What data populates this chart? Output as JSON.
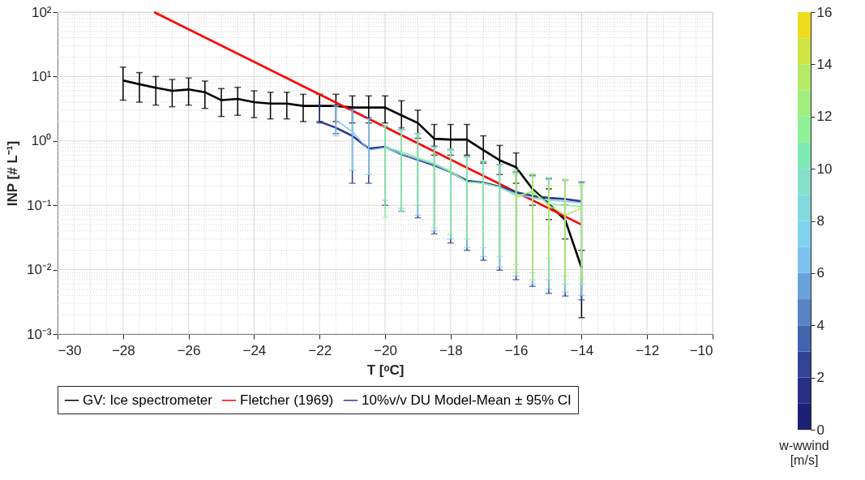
{
  "chart_data": {
    "type": "line",
    "xlabel": "T [ᵒC]",
    "ylabel": "INP [# L⁻¹]",
    "clabel": "w-wwind [m/s]",
    "clim": [
      0,
      16
    ],
    "cticks": [
      0,
      2,
      4,
      6,
      8,
      10,
      12,
      14,
      16
    ],
    "xlim": [
      -30,
      -10
    ],
    "xticks": [
      -30,
      -28,
      -26,
      -24,
      -22,
      -20,
      -18,
      -16,
      -14,
      -12,
      -10
    ],
    "ylim": [
      0.001,
      100
    ],
    "yticks": [
      {
        "value": 0.001,
        "label": "10⁻³"
      },
      {
        "value": 0.01,
        "label": "10⁻²"
      },
      {
        "value": 0.1,
        "label": "10⁻¹"
      },
      {
        "value": 1,
        "label": "10⁰"
      },
      {
        "value": 10,
        "label": "10¹"
      },
      {
        "value": 100,
        "label": "10²"
      }
    ],
    "log": "y",
    "grid": true,
    "legend": "bottom",
    "series": [
      {
        "name": "GV: Ice spectrometer",
        "color": "#000000",
        "x": [
          -28,
          -27.5,
          -27,
          -26.5,
          -26,
          -25.5,
          -25,
          -24.5,
          -24,
          -23.5,
          -23,
          -22.5,
          -22,
          -21.5,
          -21,
          -20.5,
          -20,
          -19.5,
          -19,
          -18.5,
          -18,
          -17.5,
          -17,
          -16.5,
          -16,
          -15.5,
          -15,
          -14.5,
          -14
        ],
        "values": [
          8.7,
          7.6,
          6.7,
          6.0,
          6.3,
          5.7,
          4.3,
          4.5,
          4.0,
          3.8,
          3.8,
          3.5,
          3.5,
          3.5,
          3.3,
          3.3,
          3.3,
          2.5,
          1.9,
          1.08,
          1.05,
          1.05,
          0.72,
          0.5,
          0.39,
          0.18,
          0.105,
          0.059,
          0.0107
        ],
        "errors": [
          [
            4.3,
            14
          ],
          [
            4.0,
            11.5
          ],
          [
            3.6,
            10
          ],
          [
            3.4,
            9.0
          ],
          [
            3.6,
            9.5
          ],
          [
            3.2,
            8.5
          ],
          [
            2.4,
            6.5
          ],
          [
            2.5,
            6.8
          ],
          [
            2.3,
            6.0
          ],
          [
            2.2,
            5.7
          ],
          [
            2.2,
            5.7
          ],
          [
            2.0,
            5.3
          ],
          [
            2.0,
            5.3
          ],
          [
            2.0,
            5.3
          ],
          [
            1.9,
            5.0
          ],
          [
            1.9,
            5.0
          ],
          [
            1.9,
            5.0
          ],
          [
            1.5,
            4.2
          ],
          [
            1.1,
            3.0
          ],
          [
            0.6,
            1.8
          ],
          [
            0.6,
            1.8
          ],
          [
            0.6,
            1.8
          ],
          [
            0.45,
            1.2
          ],
          [
            0.3,
            0.85
          ],
          [
            0.22,
            0.65
          ],
          [
            0.1,
            0.3
          ],
          [
            0.06,
            0.18
          ],
          [
            0.03,
            0.1
          ],
          [
            0.0018,
            0.02
          ]
        ]
      },
      {
        "name": "Fletcher (1969)",
        "color": "#ff0000",
        "x": [
          -27.05,
          -14
        ],
        "values": [
          100,
          0.05
        ]
      },
      {
        "name": "10%v/v DU Model-Mean ± 95% CI",
        "color": "#2e3c8c",
        "x": [
          -22,
          -21.5,
          -21,
          -20.5,
          -20,
          -19.5,
          -19,
          -18.5,
          -18,
          -17.5,
          -17,
          -16.5,
          -16,
          -15.5,
          -15,
          -14.5,
          -14
        ],
        "values": [
          2.0,
          1.6,
          1.2,
          0.76,
          0.81,
          0.62,
          0.51,
          0.42,
          0.33,
          0.24,
          0.225,
          0.195,
          0.16,
          0.14,
          0.13,
          0.125,
          0.115
        ],
        "errors": [
          [
            1.9,
            3.6
          ],
          [
            1.3,
            3.5
          ],
          [
            0.22,
            3.2
          ],
          [
            0.22,
            2.3
          ],
          [
            0.1,
            1.7
          ],
          [
            0.081,
            1.6
          ],
          [
            0.064,
            1.3
          ],
          [
            0.036,
            0.83
          ],
          [
            0.026,
            0.74
          ],
          [
            0.02,
            0.57
          ],
          [
            0.014,
            0.47
          ],
          [
            0.0098,
            0.43
          ],
          [
            0.007,
            0.33
          ],
          [
            0.0055,
            0.29
          ],
          [
            0.0043,
            0.26
          ],
          [
            0.0039,
            0.25
          ],
          [
            0.0034,
            0.23
          ]
        ]
      },
      {
        "color": "#7fc6f0",
        "x": [
          -21.5,
          -21,
          -20.5,
          -20,
          -19.5,
          -19,
          -18.5,
          -18,
          -17.5,
          -17,
          -16.5,
          -16,
          -15.5,
          -15,
          -14.5,
          -14
        ],
        "values": [
          2.1,
          1.4,
          0.72,
          0.78,
          0.63,
          0.52,
          0.43,
          0.33,
          0.23,
          0.22,
          0.19,
          0.15,
          0.13,
          0.12,
          0.115,
          0.11
        ],
        "errors": [
          [
            1.2,
            3.5
          ],
          [
            0.35,
            3.0
          ],
          [
            0.3,
            2.2
          ],
          [
            0.12,
            1.7
          ],
          [
            0.09,
            1.5
          ],
          [
            0.07,
            1.3
          ],
          [
            0.04,
            0.8
          ],
          [
            0.03,
            0.72
          ],
          [
            0.022,
            0.56
          ],
          [
            0.016,
            0.46
          ],
          [
            0.011,
            0.42
          ],
          [
            0.008,
            0.32
          ],
          [
            0.006,
            0.28
          ],
          [
            0.005,
            0.25
          ],
          [
            0.0045,
            0.24
          ],
          [
            0.004,
            0.22
          ]
        ]
      },
      {
        "color": "#8eee9c",
        "x": [
          -20,
          -19.5,
          -19,
          -18.5,
          -18,
          -17.5,
          -17,
          -16.5,
          -16,
          -15.5,
          -15,
          -14.5,
          -14
        ],
        "values": [
          0.8,
          0.68,
          0.55,
          0.45,
          0.34,
          0.23,
          0.22,
          0.19,
          0.14,
          0.16,
          0.105,
          0.1,
          0.095
        ],
        "errors": [
          [
            0.065,
            1.7
          ],
          [
            0.08,
            1.5
          ],
          [
            0.1,
            1.3
          ],
          [
            0.045,
            0.8
          ],
          [
            0.035,
            0.75
          ],
          [
            0.03,
            0.57
          ],
          [
            0.022,
            0.5
          ],
          [
            0.016,
            0.43
          ],
          [
            0.012,
            0.36
          ],
          [
            0.009,
            0.3
          ],
          [
            0.007,
            0.27
          ],
          [
            0.006,
            0.25
          ],
          [
            0.006,
            0.22
          ]
        ]
      },
      {
        "color": "#b5ea6a",
        "x": [
          -16,
          -15.5,
          -15,
          -14.5,
          -14
        ],
        "values": [
          0.13,
          0.17,
          0.1,
          0.07,
          0.09
        ],
        "errors": [
          [
            0.009,
            0.3
          ],
          [
            0.007,
            0.3
          ],
          [
            0.015,
            0.2
          ],
          [
            0.008,
            0.25
          ],
          [
            0.0075,
            0.2
          ]
        ]
      }
    ]
  }
}
